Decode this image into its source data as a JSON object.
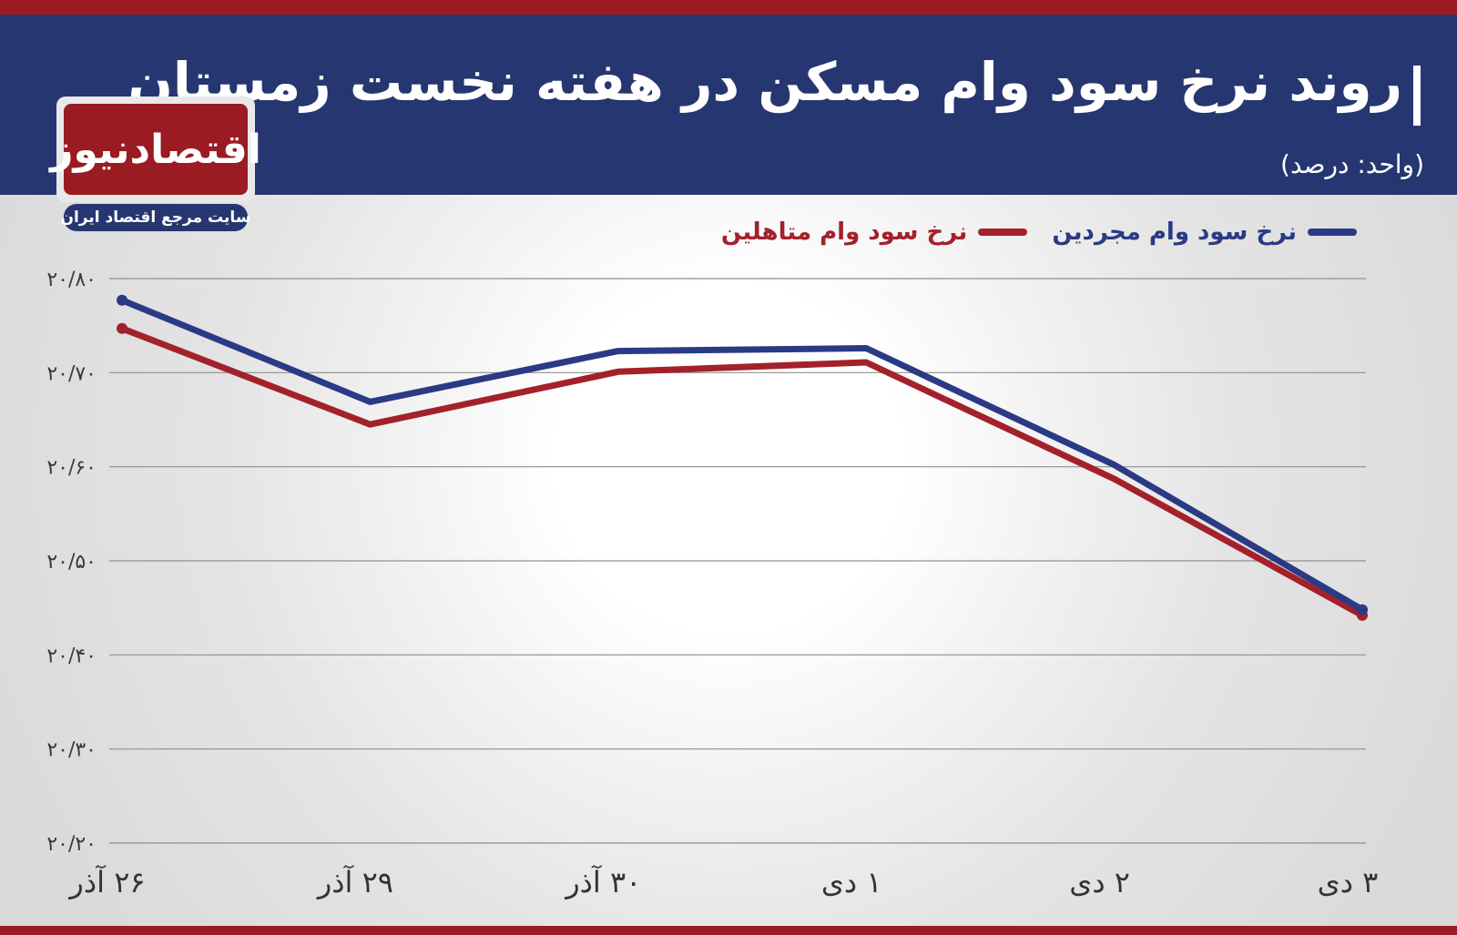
{
  "header": {
    "title": "روند نرخ سود وام مسکن در هفته نخست زمستان",
    "unit_label": "(واحد: درصد)"
  },
  "logo": {
    "name": "اقتصادنیوز",
    "tagline": "سایت مرجع اقتصاد ایران"
  },
  "colors": {
    "header_bg": "#263670",
    "accent_red": "#9b1b22",
    "series_single": "#2b3a85",
    "series_married": "#a3212a"
  },
  "chart_data": {
    "type": "line",
    "x": [
      "۲۶ آذر",
      "۲۹ آذر",
      "۳۰ آذر",
      "۱ دی",
      "۲ دی",
      "۳ دی"
    ],
    "ytick_labels": [
      "۲۰/۸۰",
      "۲۰/۷۰",
      "۲۰/۶۰",
      "۲۰/۵۰",
      "۲۰/۴۰",
      "۲۰/۳۰",
      "۲۰/۲۰"
    ],
    "ylim": [
      20.2,
      20.8
    ],
    "grid": true,
    "legend_position": "top-right",
    "series": [
      {
        "name": "نرخ سود وام مجردین",
        "color": "#2b3a85",
        "values": [
          20.777,
          20.669,
          20.723,
          20.726,
          20.602,
          20.448
        ]
      },
      {
        "name": "نرخ سود وام متاهلین",
        "color": "#a3212a",
        "values": [
          20.747,
          20.645,
          20.701,
          20.711,
          20.587,
          20.442
        ]
      }
    ]
  }
}
